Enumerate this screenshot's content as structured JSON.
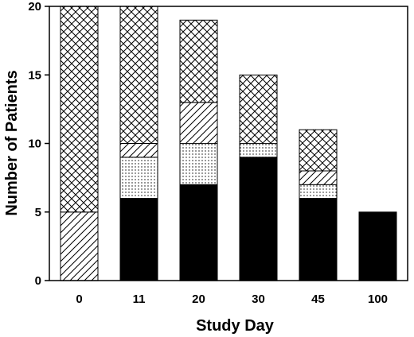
{
  "chart_data": {
    "type": "bar",
    "stacked": true,
    "xlabel": "Study Day",
    "ylabel": "Number of Patients",
    "ylim": [
      0,
      20
    ],
    "yticks": [
      0,
      5,
      10,
      15,
      20
    ],
    "categories": [
      "0",
      "11",
      "20",
      "30",
      "45",
      "100"
    ],
    "legend": "none",
    "grid": false,
    "series": [
      {
        "pattern": "solid-black",
        "values": [
          0,
          6,
          7,
          9,
          6,
          5
        ]
      },
      {
        "pattern": "dotted",
        "values": [
          0,
          3,
          3,
          1,
          1,
          0
        ]
      },
      {
        "pattern": "diagonal-hatch",
        "values": [
          5,
          1,
          3,
          0,
          1,
          0
        ]
      },
      {
        "pattern": "cross-hatch",
        "values": [
          15,
          10,
          6,
          5,
          3,
          0
        ]
      }
    ]
  }
}
